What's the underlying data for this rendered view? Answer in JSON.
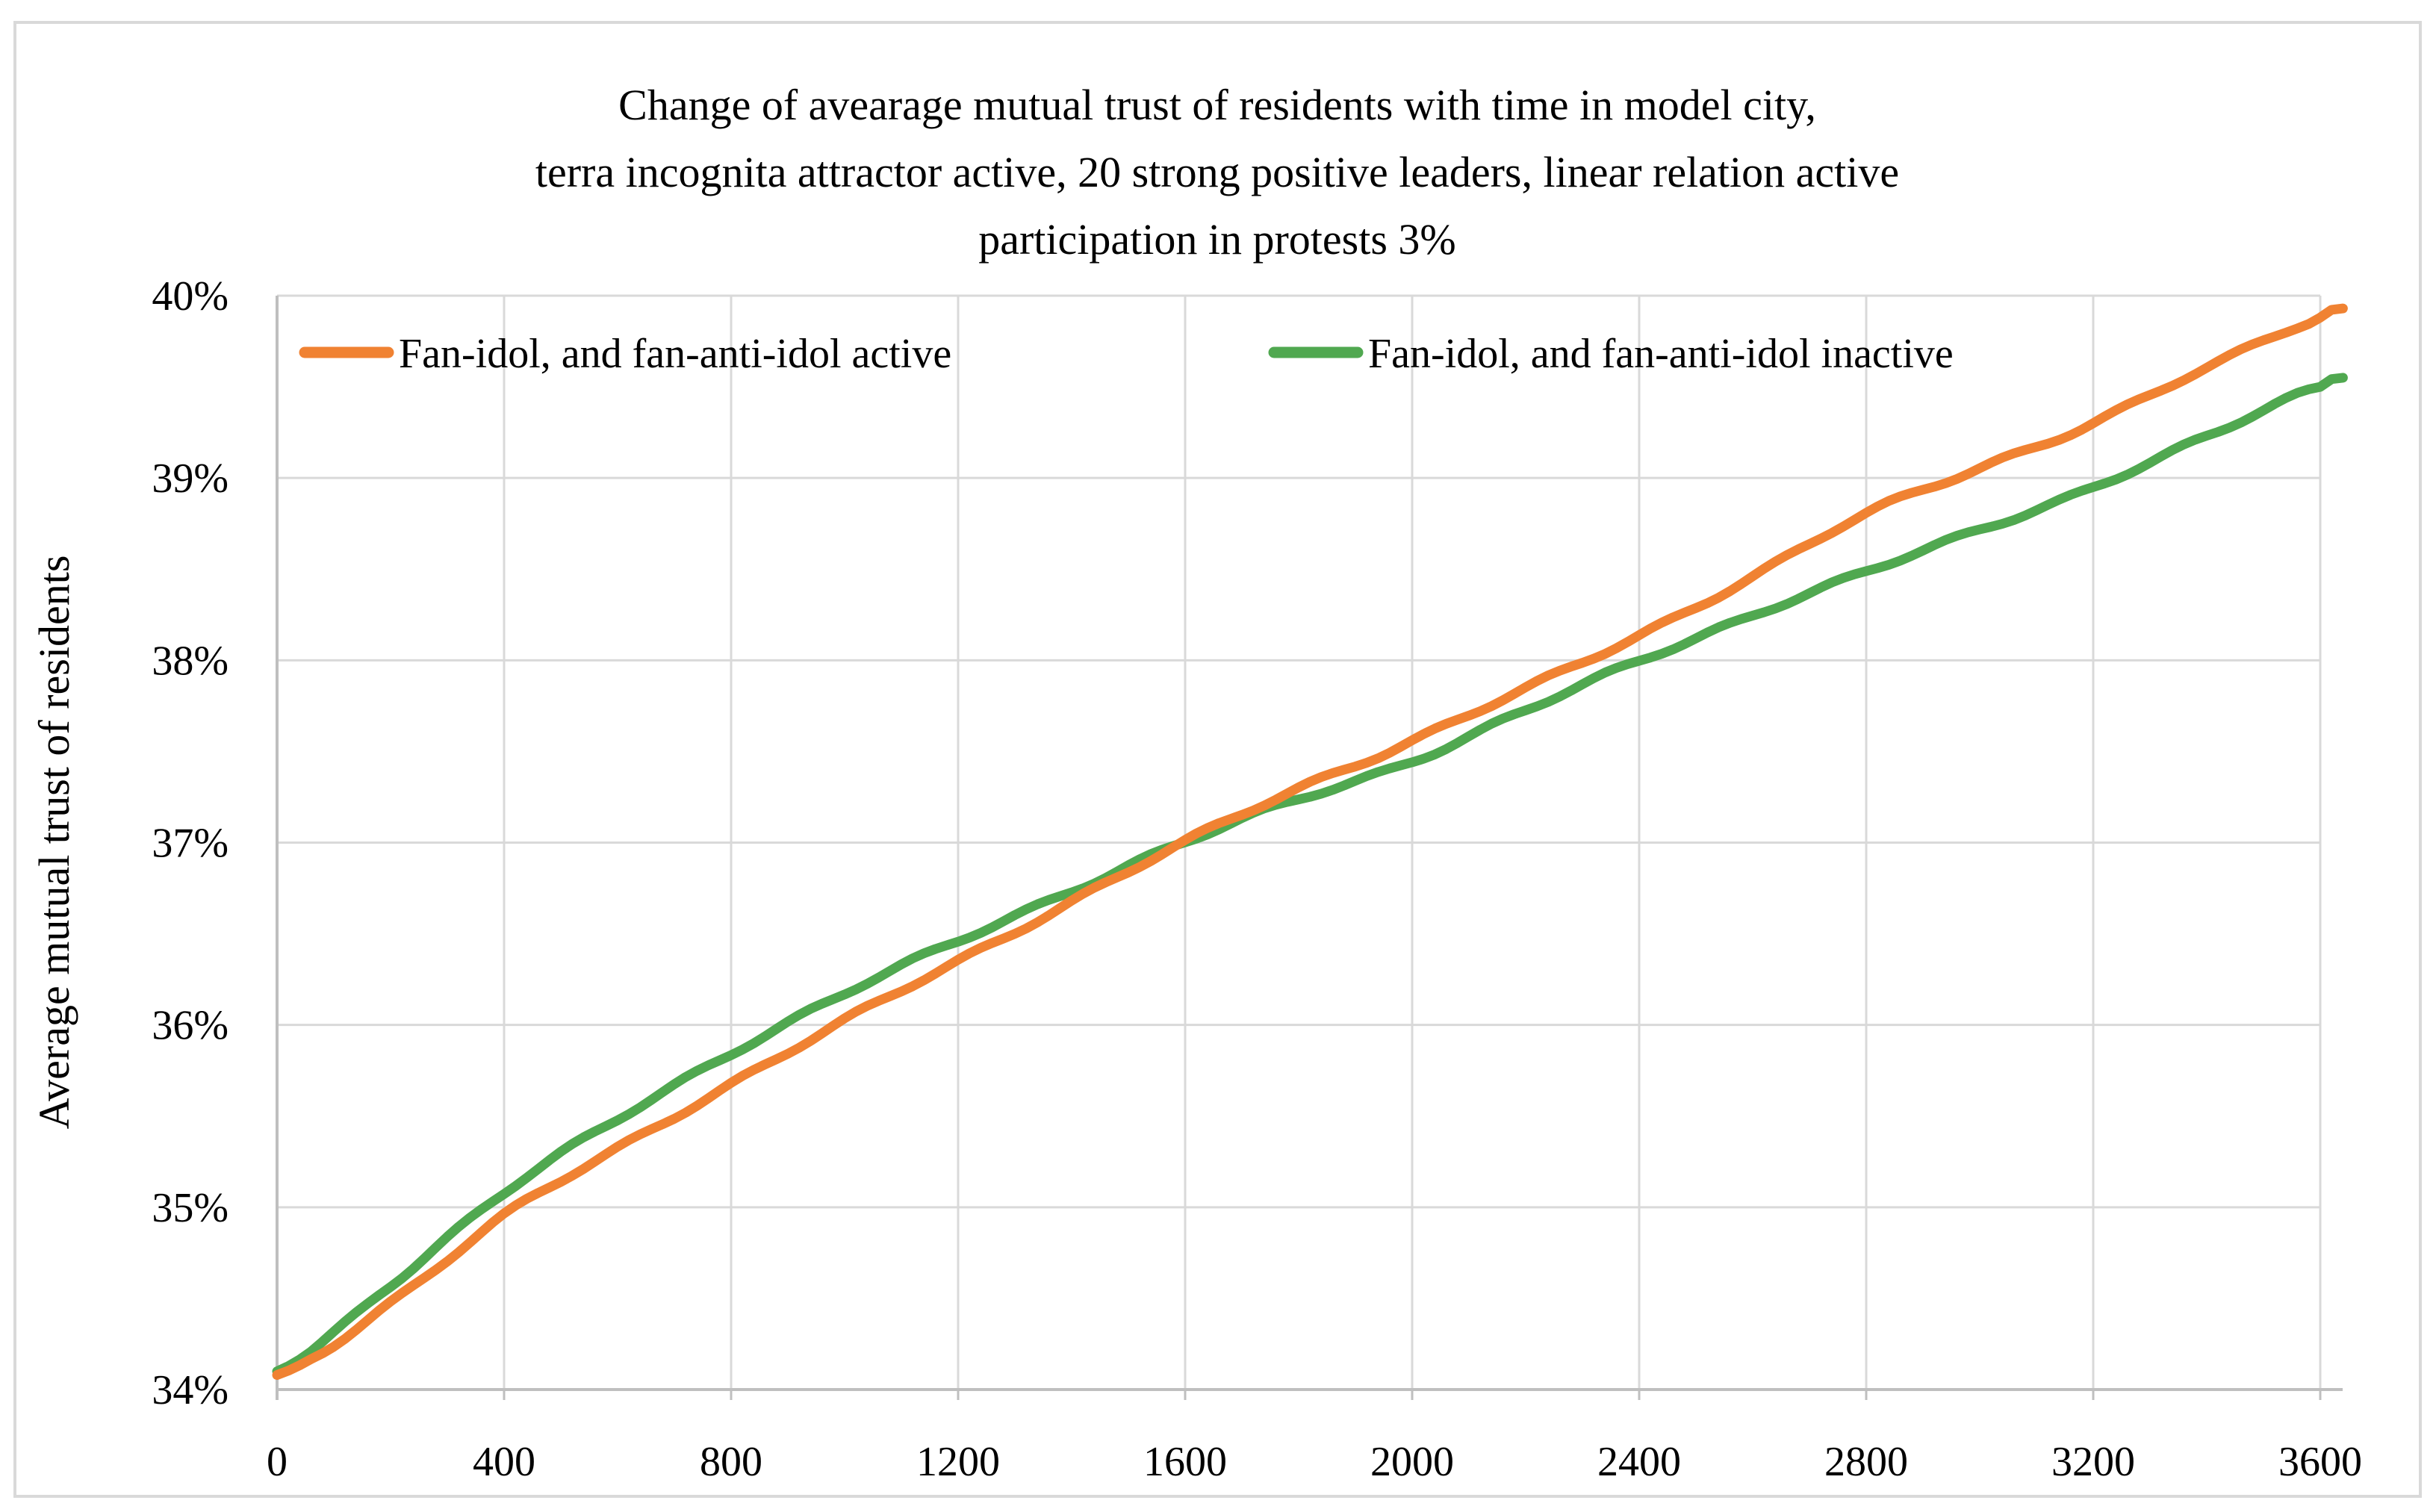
{
  "figure": {
    "background": "#ffffff",
    "border_color": "#d9d9d9"
  },
  "title": {
    "line1": "Change of avearage mutual trust of residents with time in model city,",
    "line2": "terra incognita attractor active, 20 strong positive leaders, linear relation active",
    "line3": "participation in protests 3%"
  },
  "y_axis": {
    "title": "Average mutual trust of residents",
    "tick_labels": [
      "34%",
      "35%",
      "36%",
      "37%",
      "38%",
      "39%",
      "40%"
    ],
    "tick_values": [
      34,
      35,
      36,
      37,
      38,
      39,
      40
    ],
    "min": 34,
    "max": 40
  },
  "x_axis": {
    "tick_labels": [
      "0",
      "400",
      "800",
      "1200",
      "1600",
      "2000",
      "2400",
      "2800",
      "3200",
      "3600"
    ],
    "tick_values": [
      0,
      400,
      800,
      1200,
      1600,
      2000,
      2400,
      2800,
      3200,
      3600
    ],
    "min": 0,
    "max": 3640
  },
  "legend": [
    {
      "label": "Fan-idol, and fan-anti-idol active",
      "color": "#F08232"
    },
    {
      "label": "Fan-idol, and fan-anti-idol inactive",
      "color": "#50A850"
    }
  ],
  "colors": {
    "gridline": "#d9d9d9",
    "axis": "#bfbfbf",
    "text": "#000000"
  },
  "chart_data": {
    "type": "line",
    "title": "Change of avearage mutual trust of residents with time in model city, terra incognita attractor active, 20 strong positive leaders, linear relation active participation in protests 3%",
    "xlabel": "",
    "ylabel": "Average mutual trust of residents",
    "y_unit": "%",
    "xlim": [
      0,
      3640
    ],
    "ylim": [
      34,
      40
    ],
    "grid": true,
    "legend_position": "top-inside",
    "x": [
      0,
      200,
      400,
      600,
      800,
      1000,
      1200,
      1400,
      1600,
      1800,
      2000,
      2200,
      2400,
      2600,
      2800,
      3000,
      3200,
      3400,
      3600,
      3640
    ],
    "series": [
      {
        "name": "Fan-idol, and fan-anti-idol active",
        "color": "#F08232",
        "values": [
          34.08,
          34.48,
          34.95,
          35.32,
          35.68,
          36.02,
          36.35,
          36.68,
          37.0,
          37.3,
          37.56,
          37.84,
          38.14,
          38.46,
          38.8,
          39.06,
          39.3,
          39.6,
          39.88,
          39.93
        ]
      },
      {
        "name": "Fan-idol, and fan-anti-idol inactive",
        "color": "#50A850",
        "values": [
          34.1,
          34.58,
          35.08,
          35.48,
          35.85,
          36.17,
          36.46,
          36.74,
          37.0,
          37.24,
          37.45,
          37.72,
          38.0,
          38.25,
          38.48,
          38.72,
          38.95,
          39.22,
          39.5,
          39.55
        ]
      }
    ]
  }
}
